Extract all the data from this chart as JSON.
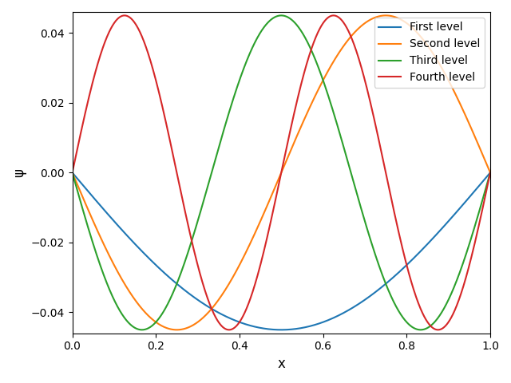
{
  "title": "",
  "xlabel": "x",
  "ylabel": "ψ",
  "xlim": [
    0.0,
    1.0
  ],
  "ylim": [
    -0.046,
    0.046
  ],
  "L": 1.0,
  "n_points": 1000,
  "levels": [
    1,
    2,
    3,
    4
  ],
  "signs": [
    -1,
    -1,
    -1,
    1
  ],
  "level_labels": [
    "First level",
    "Second level",
    "Third level",
    "Fourth level"
  ],
  "colors": [
    "#1f77b4",
    "#ff7f0e",
    "#2ca02c",
    "#d62728"
  ],
  "linewidth": 1.5,
  "legend_loc": "upper right",
  "xticks": [
    0.0,
    0.2,
    0.4,
    0.6,
    0.8,
    1.0
  ],
  "yticks": [
    -0.04,
    -0.02,
    0.0,
    0.02,
    0.04
  ],
  "figsize": [
    6.4,
    4.8
  ],
  "dpi": 100,
  "amplitude": 0.045
}
